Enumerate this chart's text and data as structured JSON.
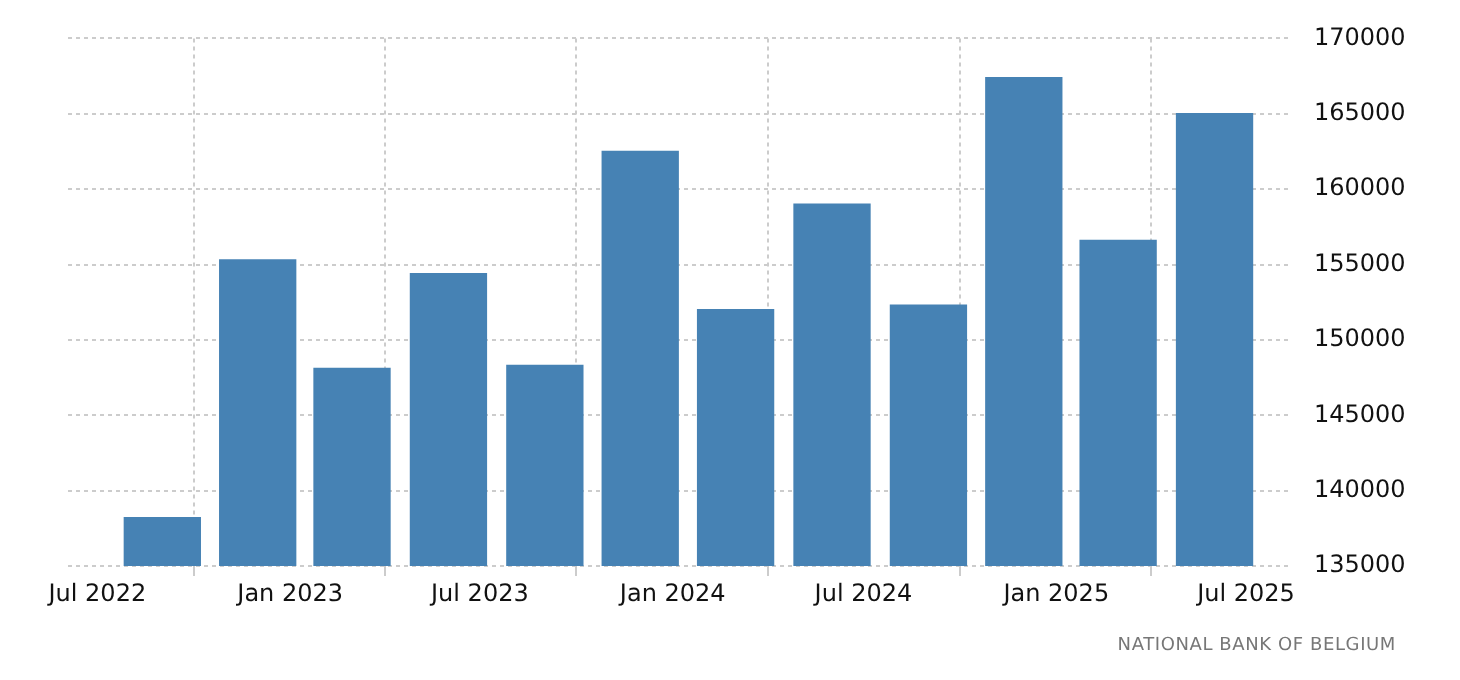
{
  "chart_data": {
    "type": "bar",
    "x": [
      "2022-09",
      "2022-12",
      "2023-03",
      "2023-06",
      "2023-09",
      "2023-12",
      "2024-03",
      "2024-06",
      "2024-09",
      "2024-12",
      "2025-03",
      "2025-06"
    ],
    "values": [
      138200,
      155300,
      148100,
      154400,
      148300,
      162500,
      152000,
      159000,
      152300,
      167400,
      156600,
      165000
    ],
    "color": "#4682b4",
    "xlim": [
      "2022-06-03",
      "2025-08-12"
    ],
    "xticks": [
      {
        "value": "2022-07",
        "label": "Jul 2022"
      },
      {
        "value": "2023-01",
        "label": "Jan 2023"
      },
      {
        "value": "2023-07",
        "label": "Jul 2023"
      },
      {
        "value": "2024-01",
        "label": "Jan 2024"
      },
      {
        "value": "2024-07",
        "label": "Jul 2024"
      },
      {
        "value": "2025-01",
        "label": "Jan 2025"
      },
      {
        "value": "2025-07",
        "label": "Jul 2025"
      }
    ],
    "ylim": [
      135000,
      170000
    ],
    "yticks": [
      135000,
      140000,
      145000,
      150000,
      155000,
      160000,
      165000,
      170000
    ],
    "grid": true,
    "annotations": [
      "NATIONAL BANK OF BELGIUM"
    ]
  }
}
